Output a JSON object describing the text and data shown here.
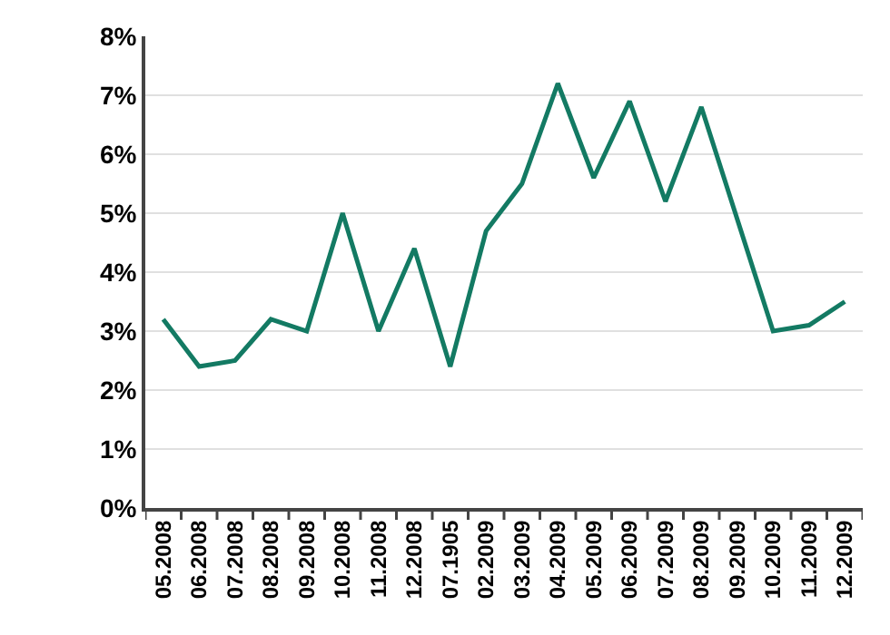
{
  "chart_data": {
    "type": "line",
    "categories": [
      "05.2008",
      "06.2008",
      "07.2008",
      "08.2008",
      "09.2008",
      "10.2008",
      "11.2008",
      "12.2008",
      "07.1905",
      "02.2009",
      "03.2009",
      "04.2009",
      "05.2009",
      "06.2009",
      "07.2009",
      "08.2009",
      "09.2009",
      "10.2009",
      "11.2009",
      "12.2009"
    ],
    "series": [
      {
        "color": "#137a63",
        "values": [
          3.2,
          2.4,
          2.5,
          3.2,
          3.0,
          5.0,
          3.0,
          4.4,
          2.4,
          4.7,
          5.5,
          7.2,
          5.6,
          6.9,
          5.2,
          6.8,
          4.9,
          3.0,
          3.1,
          3.5
        ]
      }
    ],
    "ylim": [
      0,
      8
    ],
    "yticks": [
      {
        "value": 0,
        "label": "0%"
      },
      {
        "value": 1,
        "label": "1%"
      },
      {
        "value": 2,
        "label": "2%"
      },
      {
        "value": 3,
        "label": "3%"
      },
      {
        "value": 4,
        "label": "4%"
      },
      {
        "value": 5,
        "label": "5%"
      },
      {
        "value": 6,
        "label": "6%"
      },
      {
        "value": 7,
        "label": "7%"
      },
      {
        "value": 8,
        "label": "8%"
      }
    ],
    "grid": "y",
    "marker": "none",
    "line_style": "solid"
  }
}
